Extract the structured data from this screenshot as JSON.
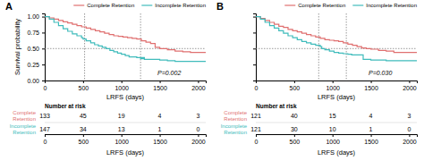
{
  "chart_data": [
    {
      "type": "step",
      "title": "A",
      "annotations": [
        "P=0.002"
      ],
      "xlabel": "LRFS (days)",
      "ylabel": "Survival probability",
      "series": [
        {
          "name": "Complete Retention",
          "color": "#E07070",
          "x": [
            0,
            60,
            120,
            180,
            240,
            300,
            360,
            420,
            480,
            540,
            600,
            660,
            720,
            780,
            840,
            900,
            960,
            1020,
            1080,
            1140,
            1200,
            1260,
            1320,
            1380,
            1440,
            1500,
            1600,
            1700,
            1800,
            1900,
            2000,
            2100
          ],
          "values": [
            1.0,
            0.98,
            0.96,
            0.94,
            0.92,
            0.9,
            0.88,
            0.86,
            0.84,
            0.82,
            0.8,
            0.78,
            0.76,
            0.74,
            0.72,
            0.7,
            0.69,
            0.68,
            0.67,
            0.66,
            0.65,
            0.62,
            0.6,
            0.58,
            0.52,
            0.5,
            0.48,
            0.46,
            0.45,
            0.44,
            0.44,
            0.44
          ]
        },
        {
          "name": "Incomplete Retention",
          "color": "#40BCBC",
          "x": [
            0,
            60,
            120,
            180,
            240,
            300,
            360,
            420,
            480,
            500,
            540,
            600,
            650,
            700,
            750,
            800,
            850,
            900,
            950,
            1000,
            1050,
            1100,
            1200,
            1300,
            1250,
            1300,
            1500,
            1600,
            1700,
            1800,
            1900,
            2000,
            2100
          ],
          "values": [
            1.0,
            0.96,
            0.91,
            0.86,
            0.81,
            0.77,
            0.73,
            0.7,
            0.67,
            0.65,
            0.62,
            0.59,
            0.56,
            0.54,
            0.52,
            0.5,
            0.47,
            0.45,
            0.43,
            0.41,
            0.39,
            0.37,
            0.36,
            0.35,
            0.34,
            0.33,
            0.32,
            0.31,
            0.3,
            0.3,
            0.3,
            0.3,
            0.3
          ]
        }
      ],
      "hlines": [
        0.5
      ],
      "vlines": [
        520,
        1250
      ],
      "xlim": [
        0,
        2100
      ],
      "ylim": [
        0.0,
        1.05
      ],
      "xticks": [
        0,
        500,
        1000,
        1500,
        2000
      ],
      "yticks": [
        {
          "value": 0.0,
          "label": "0.00"
        },
        {
          "value": 0.25,
          "label": "0.25"
        },
        {
          "value": 0.5,
          "label": "0.50"
        },
        {
          "value": 0.75,
          "label": "0.75"
        },
        {
          "value": 1.0,
          "label": "1.00"
        }
      ],
      "legend": "upper right",
      "risk_table": {
        "title": "Number at risk",
        "xlabel": "LRFS (days)",
        "timepoints": [
          0,
          500,
          1000,
          1500,
          2000
        ],
        "rows": [
          {
            "name": "Complete\nRetention",
            "color": "#E07070",
            "values": [
              133,
              45,
              19,
              4,
              3
            ]
          },
          {
            "name": "Incomplete\nRetention",
            "color": "#40BCBC",
            "values": [
              147,
              34,
              13,
              1,
              0
            ]
          }
        ]
      }
    },
    {
      "type": "step",
      "title": "B",
      "annotations": [
        "P=0.030"
      ],
      "xlabel": "LRFS (days)",
      "series": [
        {
          "name": "Complete Retention",
          "color": "#E07070",
          "x": [
            0,
            60,
            120,
            180,
            240,
            300,
            360,
            420,
            480,
            540,
            600,
            660,
            720,
            780,
            840,
            900,
            960,
            1020,
            1080,
            1140,
            1200,
            1260,
            1320,
            1380,
            1440,
            1500,
            1600,
            1700,
            1800,
            1900,
            2000,
            2100
          ],
          "values": [
            1.0,
            0.97,
            0.94,
            0.91,
            0.88,
            0.85,
            0.83,
            0.8,
            0.78,
            0.76,
            0.74,
            0.72,
            0.7,
            0.68,
            0.66,
            0.64,
            0.63,
            0.62,
            0.61,
            0.59,
            0.57,
            0.55,
            0.53,
            0.51,
            0.5,
            0.49,
            0.47,
            0.46,
            0.44,
            0.44,
            0.44,
            0.44
          ]
        },
        {
          "name": "Incomplete Retention",
          "color": "#40BCBC",
          "x": [
            0,
            60,
            120,
            180,
            240,
            300,
            360,
            420,
            480,
            540,
            600,
            660,
            720,
            780,
            840,
            860,
            900,
            960,
            1020,
            1080,
            1140,
            1200,
            1250,
            1300,
            1400,
            1500,
            1600,
            1700,
            1800,
            1900,
            2000,
            2100
          ],
          "values": [
            1.0,
            0.96,
            0.91,
            0.86,
            0.82,
            0.78,
            0.74,
            0.7,
            0.67,
            0.64,
            0.61,
            0.59,
            0.57,
            0.55,
            0.53,
            0.5,
            0.48,
            0.46,
            0.44,
            0.43,
            0.42,
            0.41,
            0.4,
            0.4,
            0.33,
            0.32,
            0.32,
            0.31,
            0.31,
            0.31,
            0.31,
            0.31
          ]
        }
      ],
      "hlines": [
        0.5
      ],
      "vlines": [
        820,
        1180
      ],
      "xlim": [
        0,
        2100
      ],
      "ylim": [
        0.0,
        1.05
      ],
      "xticks": [
        0,
        500,
        1000,
        1500,
        2000
      ],
      "yticks": [
        0.0,
        0.25,
        0.5,
        0.75,
        1.0
      ],
      "tick_labels": "x",
      "legend": "upper right",
      "risk_table": {
        "title": "Number at risk",
        "xlabel": "LRFS (days)",
        "timepoints": [
          0,
          500,
          1000,
          1500,
          2000
        ],
        "rows": [
          {
            "name": "Complete\nRetention",
            "color": "#E07070",
            "values": [
              121,
              40,
              15,
              4,
              3
            ]
          },
          {
            "name": "Incomplete\nRetention",
            "color": "#40BCBC",
            "values": [
              121,
              30,
              10,
              1,
              0
            ]
          }
        ]
      }
    }
  ]
}
